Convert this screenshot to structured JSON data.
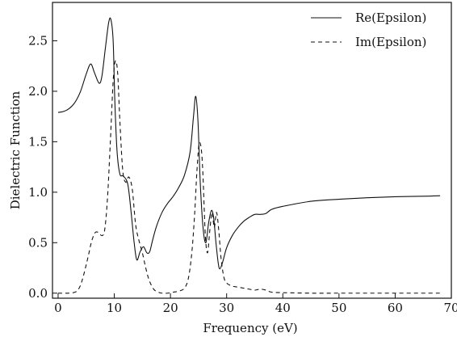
{
  "chart_data": {
    "type": "line",
    "title": "",
    "xlabel": "Frequency (eV)",
    "ylabel": "Dielectric Function",
    "xlim": [
      -1,
      70
    ],
    "ylim": [
      -0.05,
      2.88
    ],
    "xticks": [
      0,
      10,
      20,
      30,
      40,
      50,
      60,
      70
    ],
    "xtick_labels": [
      "0",
      "10",
      "20",
      "30",
      "40",
      "50",
      "60",
      "70"
    ],
    "yticks": [
      0.0,
      0.5,
      1.0,
      1.5,
      2.0,
      2.5
    ],
    "ytick_labels": [
      "0.0",
      "0.5",
      "1.0",
      "1.5",
      "2.0",
      "2.5"
    ],
    "grid": false,
    "legend_position": "top-right",
    "series": [
      {
        "name": "Re(Epsilon)",
        "style": "solid",
        "color": "#111111",
        "x": [
          0,
          1,
          2,
          3,
          4,
          5,
          5.8,
          6.5,
          7.3,
          7.8,
          8.4,
          9.0,
          9.4,
          9.8,
          10.1,
          10.5,
          11,
          11.6,
          12.4,
          13.0,
          13.5,
          14.0,
          14.6,
          15.2,
          15.8,
          16.3,
          16.8,
          17.5,
          18.5,
          19.5,
          20.5,
          21.5,
          22.5,
          23.5,
          24.1,
          24.5,
          24.9,
          25.3,
          25.8,
          26.3,
          26.8,
          27.3,
          27.7,
          28.1,
          28.5,
          28.8,
          29.3,
          30,
          31,
          32,
          33,
          34,
          35,
          36,
          37,
          38,
          40,
          45,
          50,
          55,
          60,
          65,
          68
        ],
        "y": [
          1.79,
          1.8,
          1.83,
          1.89,
          2.0,
          2.17,
          2.27,
          2.18,
          2.08,
          2.15,
          2.42,
          2.68,
          2.71,
          2.5,
          1.9,
          1.4,
          1.18,
          1.16,
          1.08,
          0.8,
          0.52,
          0.33,
          0.41,
          0.46,
          0.4,
          0.41,
          0.52,
          0.66,
          0.8,
          0.89,
          0.96,
          1.05,
          1.17,
          1.4,
          1.75,
          1.95,
          1.7,
          1.1,
          0.65,
          0.5,
          0.7,
          0.82,
          0.74,
          0.5,
          0.3,
          0.24,
          0.31,
          0.45,
          0.57,
          0.65,
          0.71,
          0.75,
          0.78,
          0.78,
          0.79,
          0.83,
          0.86,
          0.91,
          0.93,
          0.945,
          0.955,
          0.96,
          0.965
        ]
      },
      {
        "name": "Im(Epsilon)",
        "style": "dashed",
        "color": "#111111",
        "x": [
          0,
          2,
          3,
          3.5,
          4,
          4.5,
          5,
          5.5,
          6,
          6.6,
          7.2,
          7.8,
          8.3,
          8.8,
          9.3,
          9.8,
          10.2,
          10.6,
          11,
          11.5,
          12,
          12.6,
          13.2,
          13.8,
          14.4,
          15,
          15.6,
          16.2,
          17,
          17.8,
          18.5,
          19.5,
          20.5,
          21.5,
          22.5,
          23.2,
          23.8,
          24.3,
          24.7,
          25.1,
          25.5,
          25.8,
          26.2,
          26.6,
          27.0,
          27.4,
          27.8,
          28.2,
          28.6,
          29.0,
          29.5,
          30,
          31,
          32,
          33,
          34,
          35,
          36,
          37,
          38,
          40,
          45,
          50,
          55,
          60,
          65,
          68
        ],
        "y": [
          0.0,
          0.0,
          0.01,
          0.03,
          0.08,
          0.17,
          0.28,
          0.4,
          0.52,
          0.6,
          0.6,
          0.57,
          0.63,
          0.95,
          1.5,
          2.1,
          2.3,
          2.18,
          1.7,
          1.22,
          1.1,
          1.15,
          1.03,
          0.68,
          0.52,
          0.4,
          0.25,
          0.13,
          0.04,
          0.01,
          0.0,
          0.0,
          0.01,
          0.02,
          0.05,
          0.15,
          0.4,
          0.78,
          1.2,
          1.48,
          1.42,
          1.15,
          0.58,
          0.4,
          0.62,
          0.8,
          0.65,
          0.8,
          0.62,
          0.35,
          0.16,
          0.1,
          0.07,
          0.06,
          0.05,
          0.04,
          0.03,
          0.04,
          0.03,
          0.01,
          0.005,
          0.0,
          0.0,
          0.0,
          0.0,
          0.0,
          0.0
        ]
      }
    ]
  }
}
